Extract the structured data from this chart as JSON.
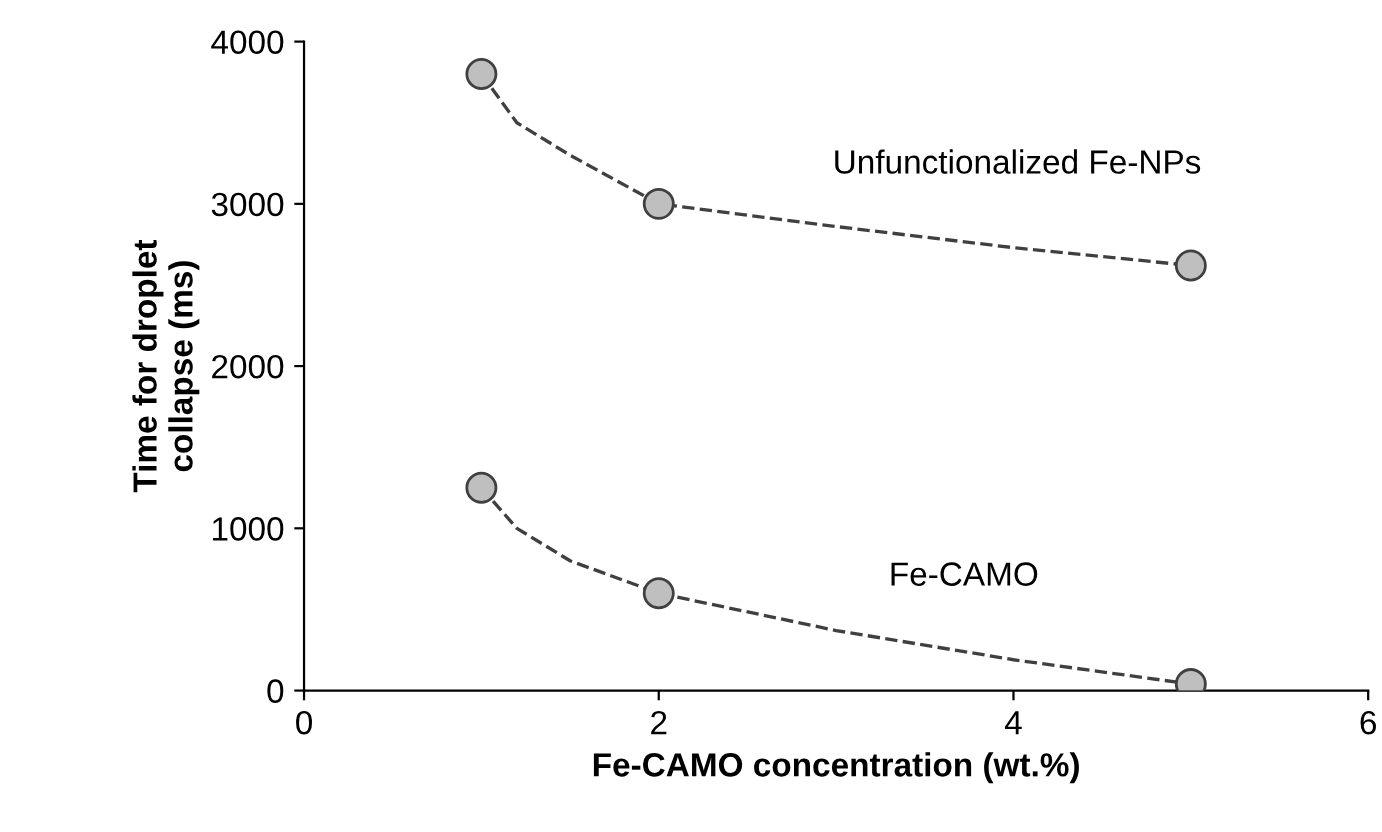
{
  "chart_data": {
    "type": "scatter",
    "xlabel": "Fe-CAMO concentration (wt.%)",
    "ylabel": "Time for droplet\ncollapse (ms)",
    "xlim": [
      0,
      6
    ],
    "xticks": [
      0,
      2,
      4,
      6
    ],
    "ylim": [
      0,
      4000
    ],
    "yticks": [
      0,
      1000,
      2000,
      3000,
      4000
    ],
    "grid": false,
    "legend": false,
    "marker": "circle",
    "series": [
      {
        "type": "line",
        "color": "#404040",
        "line_style": "dashed",
        "marker": "none",
        "x": [
          1,
          1.2,
          1.5,
          2,
          3,
          4,
          5
        ],
        "values": [
          3800,
          3500,
          3300,
          3000,
          2860,
          2730,
          2620
        ]
      },
      {
        "type": "line",
        "color": "#404040",
        "line_style": "dashed",
        "marker": "none",
        "x": [
          1,
          1.2,
          1.5,
          2,
          3,
          4,
          5
        ],
        "values": [
          1250,
          1000,
          800,
          600,
          370,
          190,
          40
        ]
      },
      {
        "color": "#bfbfbf",
        "x": [
          1,
          2,
          5
        ],
        "values": [
          3800,
          3000,
          2620
        ]
      },
      {
        "color": "#bfbfbf",
        "x": [
          1,
          2,
          5
        ],
        "values": [
          1250,
          600,
          40
        ]
      }
    ],
    "annotations": [
      "Unfunctionalized Fe-NPs",
      "Fe-CAMO"
    ]
  }
}
